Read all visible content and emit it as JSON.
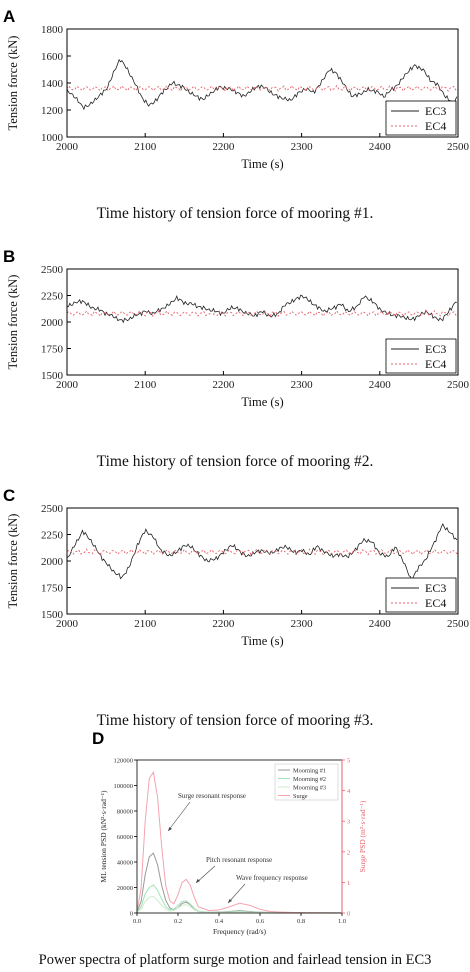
{
  "panels": [
    {
      "letter": "A",
      "caption": "Time history of tension force of mooring #1."
    },
    {
      "letter": "B",
      "caption": "Time history of tension force of mooring #2."
    },
    {
      "letter": "C",
      "caption": "Time history of tension force of mooring #3."
    },
    {
      "letter": "D",
      "caption": "Power spectra of platform surge motion and fairlead tension in EC3"
    }
  ],
  "chart_data": [
    {
      "type": "line",
      "title": "",
      "xlabel": "Time (s)",
      "ylabel": "Tension force (kN)",
      "xlim": [
        2000,
        2500
      ],
      "ylim": [
        1000,
        1800
      ],
      "xticks": [
        2000,
        2100,
        2200,
        2300,
        2400,
        2500
      ],
      "yticks": [
        1000,
        1200,
        1400,
        1600,
        1800
      ],
      "legend": "bottom-right",
      "grid": false,
      "series": [
        {
          "name": "EC3",
          "color": "#222222",
          "dash": "",
          "baseline": 1350,
          "x": [
            2000,
            2010,
            2020,
            2030,
            2040,
            2050,
            2060,
            2068,
            2075,
            2085,
            2095,
            2105,
            2115,
            2125,
            2135,
            2145,
            2155,
            2165,
            2175,
            2185,
            2195,
            2205,
            2215,
            2225,
            2235,
            2245,
            2255,
            2265,
            2275,
            2285,
            2295,
            2305,
            2315,
            2325,
            2335,
            2345,
            2355,
            2365,
            2375,
            2385,
            2395,
            2405,
            2415,
            2425,
            2435,
            2445,
            2455,
            2465,
            2475,
            2485,
            2495,
            2500
          ],
          "y": [
            1340,
            1300,
            1220,
            1240,
            1300,
            1350,
            1480,
            1580,
            1520,
            1420,
            1300,
            1230,
            1280,
            1350,
            1400,
            1380,
            1340,
            1300,
            1280,
            1330,
            1370,
            1360,
            1340,
            1300,
            1340,
            1380,
            1360,
            1310,
            1290,
            1270,
            1320,
            1360,
            1330,
            1400,
            1500,
            1470,
            1380,
            1300,
            1320,
            1350,
            1340,
            1300,
            1350,
            1400,
            1480,
            1530,
            1500,
            1420,
            1380,
            1290,
            1250,
            1310
          ]
        },
        {
          "name": "EC4",
          "color": "#e8606a",
          "dash": "2,2",
          "baseline": 1360,
          "x": [
            2000,
            2500
          ],
          "y": [
            1360,
            1360
          ]
        }
      ]
    },
    {
      "type": "line",
      "title": "",
      "xlabel": "Time (s)",
      "ylabel": "Tension force (kN)",
      "xlim": [
        2000,
        2500
      ],
      "ylim": [
        1500,
        2500
      ],
      "xticks": [
        2000,
        2100,
        2200,
        2300,
        2400,
        2500
      ],
      "yticks": [
        1500,
        1750,
        2000,
        2250,
        2500
      ],
      "legend": "bottom-right",
      "grid": false,
      "series": [
        {
          "name": "EC3",
          "color": "#222222",
          "dash": "",
          "baseline": 2100,
          "x": [
            2000,
            2010,
            2020,
            2030,
            2040,
            2050,
            2060,
            2070,
            2080,
            2090,
            2100,
            2110,
            2120,
            2130,
            2140,
            2150,
            2160,
            2170,
            2180,
            2190,
            2200,
            2210,
            2220,
            2230,
            2240,
            2250,
            2260,
            2270,
            2280,
            2290,
            2300,
            2310,
            2320,
            2330,
            2340,
            2350,
            2360,
            2370,
            2380,
            2390,
            2400,
            2410,
            2420,
            2430,
            2440,
            2450,
            2460,
            2470,
            2480,
            2490,
            2500
          ],
          "y": [
            2150,
            2180,
            2200,
            2140,
            2120,
            2080,
            2050,
            2010,
            2030,
            2070,
            2100,
            2080,
            2120,
            2160,
            2230,
            2180,
            2170,
            2140,
            2120,
            2100,
            2080,
            2140,
            2120,
            2080,
            2060,
            2100,
            2050,
            2080,
            2170,
            2200,
            2250,
            2200,
            2140,
            2100,
            2130,
            2170,
            2100,
            2140,
            2240,
            2200,
            2120,
            2080,
            2060,
            2050,
            2020,
            2060,
            2100,
            2040,
            2020,
            2120,
            2210
          ]
        },
        {
          "name": "EC4",
          "color": "#e8606a",
          "dash": "2,2",
          "baseline": 2080,
          "x": [
            2000,
            2500
          ],
          "y": [
            2080,
            2080
          ]
        }
      ]
    },
    {
      "type": "line",
      "title": "",
      "xlabel": "Time (s)",
      "ylabel": "Tension force (kN)",
      "xlim": [
        2000,
        2500
      ],
      "ylim": [
        1500,
        2500
      ],
      "xticks": [
        2000,
        2100,
        2200,
        2300,
        2400,
        2500
      ],
      "yticks": [
        1500,
        1750,
        2000,
        2250,
        2500
      ],
      "legend": "bottom-right",
      "grid": false,
      "series": [
        {
          "name": "EC3",
          "color": "#222222",
          "dash": "",
          "baseline": 2080,
          "x": [
            2000,
            2010,
            2020,
            2030,
            2040,
            2050,
            2060,
            2070,
            2080,
            2090,
            2100,
            2110,
            2120,
            2130,
            2140,
            2150,
            2160,
            2170,
            2180,
            2190,
            2200,
            2210,
            2220,
            2230,
            2240,
            2250,
            2260,
            2270,
            2280,
            2290,
            2300,
            2310,
            2320,
            2330,
            2340,
            2350,
            2360,
            2370,
            2380,
            2390,
            2400,
            2410,
            2420,
            2430,
            2440,
            2450,
            2460,
            2470,
            2480,
            2490,
            2500
          ],
          "y": [
            2020,
            2150,
            2280,
            2200,
            2080,
            1980,
            1900,
            1840,
            1950,
            2150,
            2290,
            2230,
            2100,
            2050,
            2080,
            2150,
            2130,
            2050,
            2000,
            2020,
            2080,
            2150,
            2100,
            2040,
            2080,
            2100,
            2070,
            2110,
            2140,
            2080,
            2100,
            2060,
            2140,
            2080,
            2050,
            2060,
            2040,
            2120,
            2200,
            2180,
            2070,
            2040,
            2130,
            2000,
            1820,
            1940,
            2030,
            2180,
            2340,
            2270,
            2180
          ]
        },
        {
          "name": "EC4",
          "color": "#e8606a",
          "dash": "2,2",
          "baseline": 2085,
          "x": [
            2000,
            2500
          ],
          "y": [
            2085,
            2085
          ]
        }
      ]
    },
    {
      "type": "line",
      "title": "",
      "xlabel": "Frequency (rad/s)",
      "ylabel": "ML tension PSD (kN²·s·rad⁻¹)",
      "ylabel_right": "Surge PSD (m²·s·rad⁻¹)",
      "xlim": [
        0,
        1.0
      ],
      "ylim": [
        0,
        120000
      ],
      "ylim_right": [
        0,
        5
      ],
      "xticks": [
        0.0,
        0.2,
        0.4,
        0.6,
        0.8,
        1.0
      ],
      "yticks": [
        0,
        20000,
        40000,
        60000,
        80000,
        100000,
        120000
      ],
      "yticks_right": [
        0,
        1,
        2,
        3,
        4,
        5
      ],
      "legend": "top-right",
      "grid": false,
      "annotations": [
        "Surge resonant response",
        "Pitch resonant response",
        "Wave frequency response"
      ],
      "series": [
        {
          "name": "Moorning #1",
          "color": "#999999",
          "axis": "left",
          "x": [
            0,
            0.02,
            0.04,
            0.06,
            0.08,
            0.1,
            0.12,
            0.14,
            0.16,
            0.18,
            0.2,
            0.22,
            0.24,
            0.26,
            0.28,
            0.3,
            0.35,
            0.4,
            0.45,
            0.5,
            0.55,
            0.6,
            0.7,
            0.8,
            1.0
          ],
          "y": [
            800,
            9000,
            30000,
            44000,
            47000,
            38000,
            22000,
            10000,
            4000,
            2500,
            4000,
            7500,
            8500,
            6500,
            3000,
            1200,
            600,
            700,
            1200,
            1800,
            1200,
            600,
            300,
            150,
            80
          ]
        },
        {
          "name": "Moorning #2",
          "color": "#9fe3b8",
          "axis": "left",
          "x": [
            0,
            0.02,
            0.04,
            0.06,
            0.08,
            0.1,
            0.12,
            0.14,
            0.16,
            0.18,
            0.2,
            0.22,
            0.24,
            0.26,
            0.28,
            0.3,
            0.35,
            0.4,
            0.5,
            0.6,
            0.8,
            1.0
          ],
          "y": [
            500,
            5000,
            15000,
            20000,
            22000,
            18000,
            11000,
            5000,
            2500,
            3000,
            6000,
            9000,
            9500,
            7000,
            3500,
            1400,
            600,
            500,
            1200,
            500,
            150,
            60
          ]
        },
        {
          "name": "Moorning #3",
          "color": "#cdeccd",
          "axis": "left",
          "x": [
            0,
            0.02,
            0.04,
            0.06,
            0.08,
            0.1,
            0.12,
            0.14,
            0.16,
            0.18,
            0.2,
            0.22,
            0.24,
            0.26,
            0.28,
            0.3,
            0.35,
            0.4,
            0.5,
            0.6,
            0.8,
            1.0
          ],
          "y": [
            400,
            3000,
            9000,
            12500,
            13000,
            10000,
            6000,
            3000,
            1500,
            2000,
            4000,
            6000,
            6500,
            5000,
            2500,
            1000,
            500,
            400,
            900,
            400,
            120,
            50
          ]
        },
        {
          "name": "Surge",
          "color": "#f4a3b0",
          "axis": "right",
          "x": [
            0,
            0.02,
            0.04,
            0.06,
            0.08,
            0.1,
            0.12,
            0.14,
            0.16,
            0.18,
            0.2,
            0.22,
            0.24,
            0.26,
            0.28,
            0.3,
            0.35,
            0.4,
            0.45,
            0.5,
            0.55,
            0.6,
            0.65,
            0.7,
            0.8,
            1.0
          ],
          "y": [
            0.05,
            0.8,
            3.0,
            4.4,
            4.6,
            3.8,
            2.2,
            0.9,
            0.4,
            0.3,
            0.6,
            1.0,
            1.1,
            0.9,
            0.5,
            0.2,
            0.08,
            0.1,
            0.2,
            0.32,
            0.25,
            0.12,
            0.05,
            0.03,
            0.01,
            0.0
          ]
        }
      ]
    }
  ]
}
